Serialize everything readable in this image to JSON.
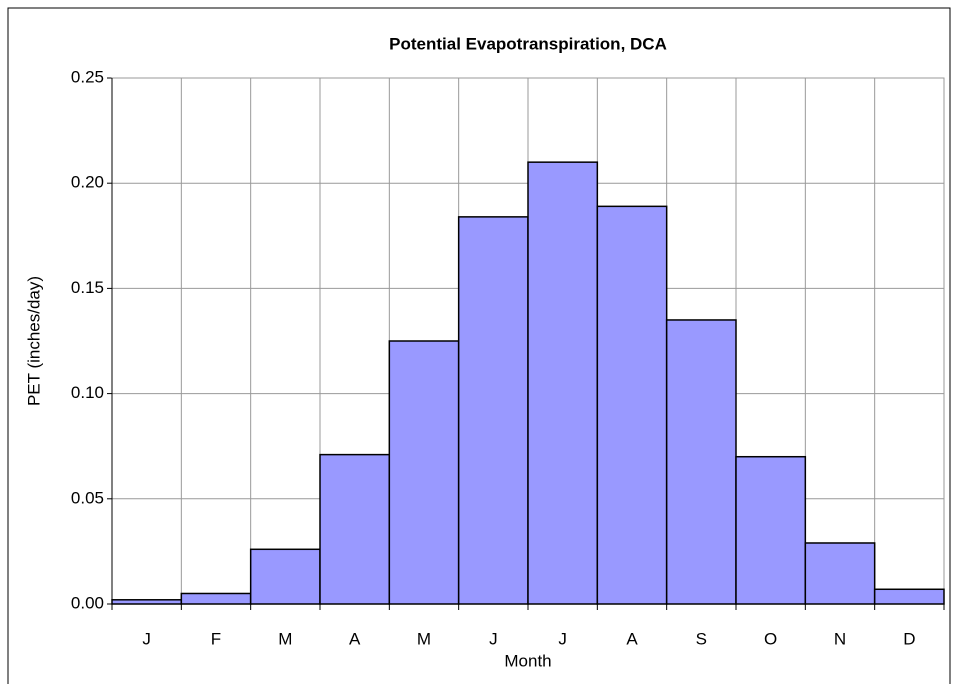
{
  "chart_data": {
    "type": "bar",
    "title": "Potential Evapotranspiration, DCA",
    "xlabel": "Month",
    "ylabel": "PET (inches/day)",
    "categories": [
      "J",
      "F",
      "M",
      "A",
      "M",
      "J",
      "J",
      "A",
      "S",
      "O",
      "N",
      "D"
    ],
    "values": [
      0.002,
      0.005,
      0.026,
      0.071,
      0.125,
      0.184,
      0.21,
      0.189,
      0.135,
      0.07,
      0.029,
      0.007
    ],
    "color": "#9999ff",
    "ylim": [
      0,
      0.25
    ],
    "yticks": [
      {
        "value": 0,
        "label": "0.00"
      },
      {
        "value": 0.05,
        "label": "0.05"
      },
      {
        "value": 0.1,
        "label": "0.10"
      },
      {
        "value": 0.15,
        "label": "0.15"
      },
      {
        "value": 0.2,
        "label": "0.20"
      },
      {
        "value": 0.25,
        "label": "0.25"
      }
    ],
    "grid": true
  }
}
